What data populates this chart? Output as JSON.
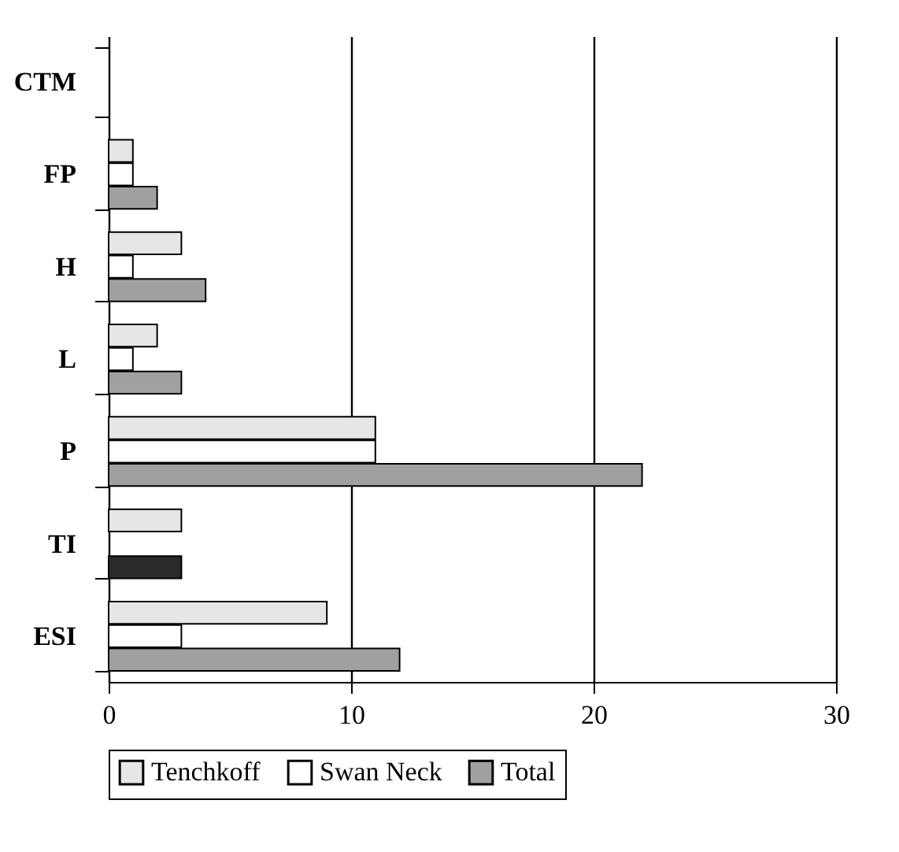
{
  "chart_data": {
    "type": "bar",
    "orientation": "horizontal",
    "categories": [
      "CTM",
      "FP",
      "H",
      "L",
      "P",
      "TI",
      "ESI"
    ],
    "series": [
      {
        "name": "Tenchkoff",
        "color": "#e6e6e6",
        "values": [
          0,
          1,
          3,
          2,
          11,
          3,
          9
        ]
      },
      {
        "name": "Swan Neck",
        "color": "#ffffff",
        "values": [
          0,
          1,
          1,
          1,
          11,
          0,
          3
        ]
      },
      {
        "name": "Total",
        "color": "#a0a0a0",
        "colors": [
          "#a0a0a0",
          "#a0a0a0",
          "#a0a0a0",
          "#a0a0a0",
          "#a0a0a0",
          "#2a2a2a",
          "#a0a0a0"
        ],
        "values": [
          0,
          2,
          4,
          3,
          22,
          3,
          12
        ]
      }
    ],
    "xlim": [
      0,
      30
    ],
    "xticks": [
      0,
      10,
      20,
      30
    ],
    "grid": "x",
    "legend": "bottom"
  }
}
